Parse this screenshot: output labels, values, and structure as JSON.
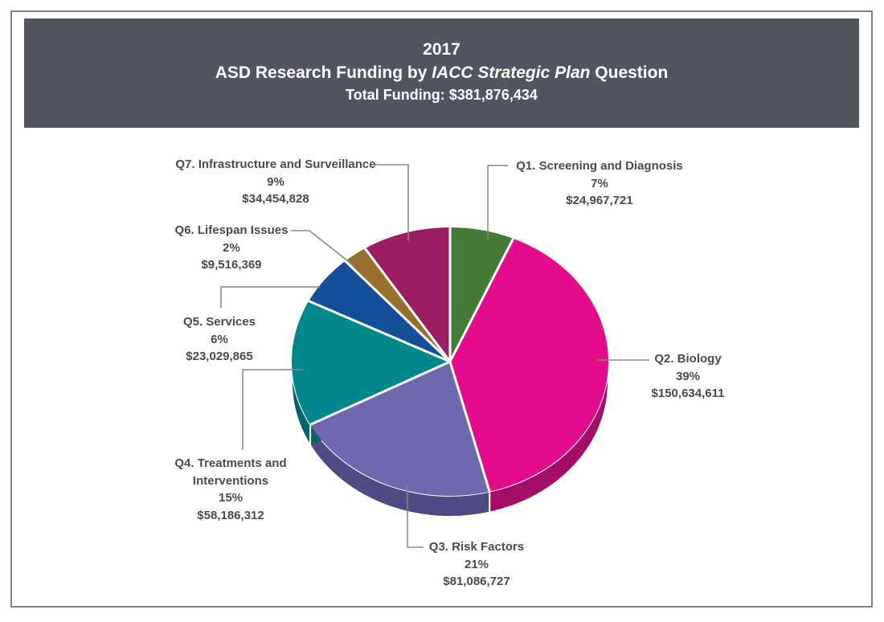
{
  "header": {
    "year": "2017",
    "title_prefix": "ASD Research Funding by ",
    "title_italic": "IACC Strategic Plan",
    "title_suffix": " Question",
    "total_funding": "Total Funding: $381,876,434"
  },
  "chart_data": {
    "type": "pie",
    "title": "2017 ASD Research Funding by IACC Strategic Plan Question",
    "subtitle": "Total Funding: $381,876,434",
    "total_value": 381876434,
    "start_angle_deg": -90,
    "direction": "clockwise",
    "style": "3d-pie-with-depth",
    "leader_line_color": "#85858d",
    "label_text_color": "#4a4a52",
    "header_background": "#52555e",
    "slices": [
      {
        "label": "Q1. Screening and Diagnosis",
        "percent": "7%",
        "amount": "$24,967,721",
        "value": 24967721,
        "color": "#447c37",
        "side_color": "#2f5c28"
      },
      {
        "label": "Q2. Biology",
        "percent": "39%",
        "amount": "$150,634,611",
        "value": 150634611,
        "color": "#e30d8c",
        "side_color": "#a50c68"
      },
      {
        "label": "Q3. Risk Factors",
        "percent": "21%",
        "amount": "$81,086,727",
        "value": 81086727,
        "color": "#7068ae",
        "side_color": "#514b84"
      },
      {
        "label": "Q4. Treatments and Interventions",
        "percent": "15%",
        "amount": "$58,186,312",
        "value": 58186312,
        "color": "#00878c",
        "side_color": "#00666b"
      },
      {
        "label": "Q5. Services",
        "percent": "6%",
        "amount": "$23,029,865",
        "value": 23029865,
        "color": "#14509a",
        "side_color": "#0e3b72"
      },
      {
        "label": "Q6. Lifespan Issues",
        "percent": "2%",
        "amount": "$9,516,369",
        "value": 9516369,
        "color": "#97702e",
        "side_color": "#6f5420"
      },
      {
        "label": "Q7. Infrastructure and Surveillance",
        "percent": "9%",
        "amount": "$34,454,828",
        "value": 34454828,
        "color": "#9a1c63",
        "side_color": "#6f1446"
      }
    ]
  }
}
